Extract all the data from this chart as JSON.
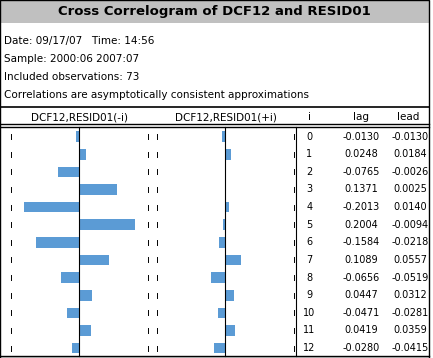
{
  "title": "Cross Correlogram of DCF12 and RESID01",
  "date_line": "Date: 09/17/07   Time: 14:56",
  "sample_line": "Sample: 2000:06 2007:07",
  "obs_line": "Included observations: 73",
  "corr_line": "Correlations are asymptotically consistent approximations",
  "col1_header": "DCF12,RESID01(-i)",
  "col2_header": "DCF12,RESID01(+i)",
  "col3_header": "i",
  "col4_header": "lag",
  "col5_header": "lead",
  "lags": [
    0,
    1,
    2,
    3,
    4,
    5,
    6,
    7,
    8,
    9,
    10,
    11,
    12
  ],
  "lag_vals": [
    -0.013,
    0.0248,
    -0.0765,
    0.1371,
    -0.2013,
    0.2004,
    -0.1584,
    0.1089,
    -0.0656,
    0.0447,
    -0.0471,
    0.0419,
    -0.028
  ],
  "lead_vals": [
    -0.013,
    0.0184,
    -0.0026,
    0.0025,
    0.014,
    -0.0094,
    -0.0218,
    0.0557,
    -0.0519,
    0.0312,
    -0.0281,
    0.0359,
    -0.0415
  ],
  "bar_color": "#5b9bd5",
  "title_bg": "#c0c0c0"
}
